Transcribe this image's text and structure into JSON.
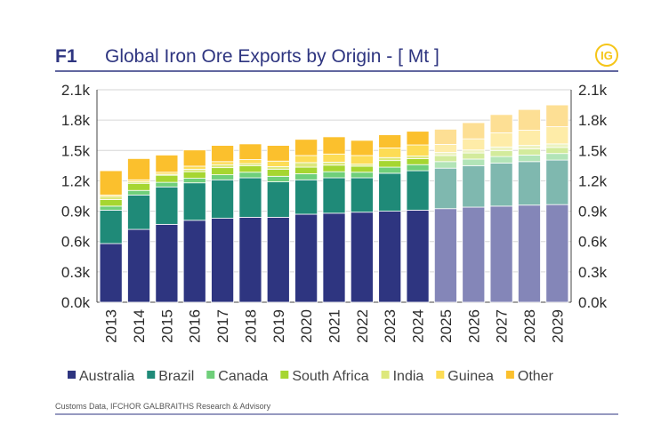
{
  "chart_data": {
    "type": "stacked-bar",
    "label": "F1",
    "title": "Global Iron Ore Exports by Origin - [ Mt ]",
    "logo": "IG",
    "source": "Customs Data, IFCHOR GALBRAITHS Research & Advisory",
    "categories": [
      "2013",
      "2014",
      "2015",
      "2016",
      "2017",
      "2018",
      "2019",
      "2020",
      "2021",
      "2022",
      "2023",
      "2024",
      "2025",
      "2026",
      "2027",
      "2028",
      "2029"
    ],
    "forecast_from": "2025",
    "series": [
      {
        "name": "Australia",
        "color": "#2e3580",
        "forecast_color": "#8486b8",
        "values": [
          580,
          720,
          770,
          810,
          830,
          840,
          840,
          870,
          880,
          890,
          900,
          910,
          925,
          940,
          950,
          960,
          965
        ]
      },
      {
        "name": "Brazil",
        "color": "#1f8a78",
        "forecast_color": "#7fb8af",
        "values": [
          330,
          340,
          370,
          370,
          380,
          390,
          350,
          340,
          350,
          340,
          375,
          390,
          400,
          410,
          425,
          430,
          440
        ]
      },
      {
        "name": "Canada",
        "color": "#6fcf7a",
        "forecast_color": "#b2e4b7",
        "values": [
          40,
          45,
          45,
          45,
          50,
          55,
          55,
          60,
          60,
          55,
          60,
          60,
          65,
          65,
          65,
          65,
          65
        ]
      },
      {
        "name": "South Africa",
        "color": "#a6d631",
        "forecast_color": "#d3eb9c",
        "values": [
          65,
          70,
          70,
          65,
          70,
          65,
          70,
          65,
          65,
          60,
          65,
          60,
          60,
          60,
          60,
          60,
          60
        ]
      },
      {
        "name": "India",
        "color": "#dde87c",
        "forecast_color": "#edf3c0",
        "values": [
          30,
          15,
          10,
          25,
          30,
          20,
          25,
          45,
          30,
          20,
          30,
          25,
          30,
          30,
          35,
          35,
          35
        ]
      },
      {
        "name": "Guinea",
        "color": "#fddc55",
        "forecast_color": "#feeca8",
        "values": [
          15,
          20,
          20,
          30,
          30,
          40,
          55,
          70,
          80,
          85,
          95,
          110,
          80,
          110,
          140,
          150,
          170
        ]
      },
      {
        "name": "Other",
        "color": "#fbc02d",
        "forecast_color": "#fddf94",
        "values": [
          240,
          210,
          170,
          160,
          160,
          155,
          155,
          160,
          170,
          150,
          130,
          135,
          150,
          160,
          180,
          205,
          215
        ]
      }
    ],
    "ylim": [
      0,
      2100
    ],
    "yticks": [
      {
        "value": 0,
        "label": "0.0k"
      },
      {
        "value": 300,
        "label": "0.3k"
      },
      {
        "value": 600,
        "label": "0.6k"
      },
      {
        "value": 900,
        "label": "0.9k"
      },
      {
        "value": 1200,
        "label": "1.2k"
      },
      {
        "value": 1500,
        "label": "1.5k"
      },
      {
        "value": 1800,
        "label": "1.8k"
      },
      {
        "value": 2100,
        "label": "2.1k"
      }
    ],
    "grid": true
  }
}
